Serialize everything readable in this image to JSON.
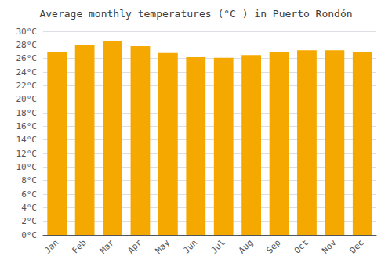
{
  "chart_data": {
    "type": "bar",
    "title": "Average monthly temperatures (°C ) in Puerto Rondón",
    "categories": [
      "Jan",
      "Feb",
      "Mar",
      "Apr",
      "May",
      "Jun",
      "Jul",
      "Aug",
      "Sep",
      "Oct",
      "Nov",
      "Dec"
    ],
    "values": [
      27.0,
      28.0,
      28.5,
      27.8,
      26.8,
      26.2,
      26.1,
      26.5,
      27.0,
      27.2,
      27.2,
      27.0
    ],
    "color": "#F5A800",
    "ylim": [
      0,
      30
    ],
    "yticks": [
      {
        "value": 0,
        "label": "0°C"
      },
      {
        "value": 2,
        "label": "2°C"
      },
      {
        "value": 4,
        "label": "4°C"
      },
      {
        "value": 6,
        "label": "6°C"
      },
      {
        "value": 8,
        "label": "8°C"
      },
      {
        "value": 10,
        "label": "10°C"
      },
      {
        "value": 12,
        "label": "12°C"
      },
      {
        "value": 14,
        "label": "14°C"
      },
      {
        "value": 16,
        "label": "16°C"
      },
      {
        "value": 18,
        "label": "18°C"
      },
      {
        "value": 20,
        "label": "20°C"
      },
      {
        "value": 22,
        "label": "22°C"
      },
      {
        "value": 24,
        "label": "24°C"
      },
      {
        "value": 26,
        "label": "26°C"
      },
      {
        "value": 28,
        "label": "28°C"
      },
      {
        "value": 30,
        "label": "30°C"
      }
    ],
    "grid": true
  }
}
